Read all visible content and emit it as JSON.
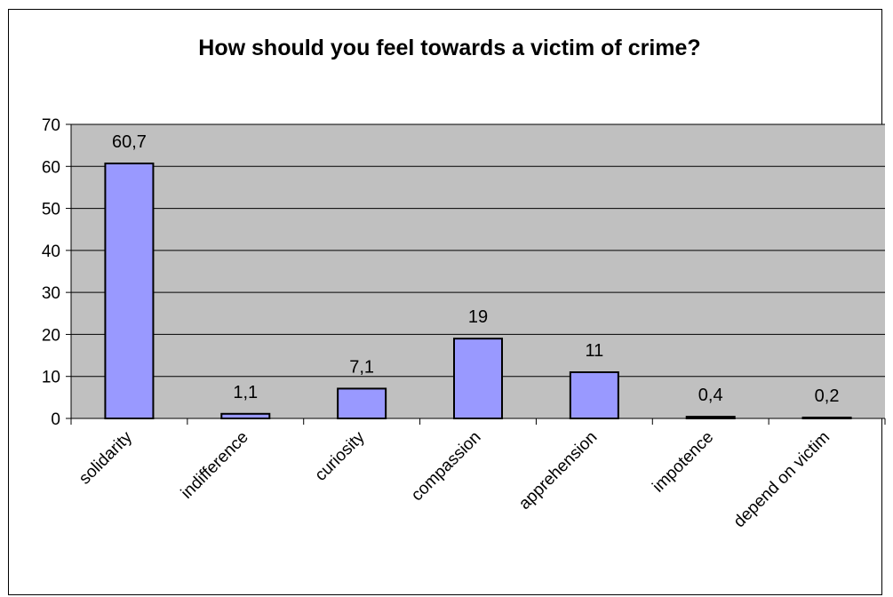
{
  "chart_data": {
    "type": "bar",
    "title": "How should you feel towards a victim of crime?",
    "categories": [
      "solidarity",
      "indifference",
      "curiosity",
      "compassion",
      "apprehension",
      "impotence",
      "depend on victim"
    ],
    "values": [
      60.7,
      1.1,
      7.1,
      19,
      11,
      0.4,
      0.2
    ],
    "data_labels": [
      "60,7",
      "1,1",
      "7,1",
      "19",
      "11",
      "0,4",
      "0,2"
    ],
    "yticks": [
      0,
      10,
      20,
      30,
      40,
      50,
      60,
      70
    ],
    "ylim": [
      0,
      70
    ],
    "xlabel": "",
    "ylabel": "",
    "grid": true,
    "legend": "none",
    "colors": {
      "bar_fill": "#9999FF",
      "plot_background": "#C0C0C0",
      "gridline": "#000000",
      "bar_stroke": "#000000"
    }
  }
}
